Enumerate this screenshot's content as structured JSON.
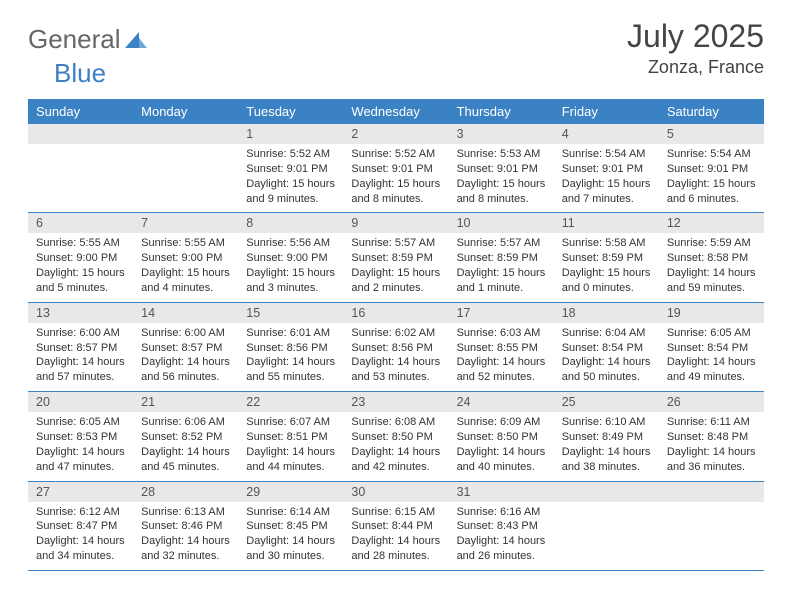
{
  "logo": {
    "text1": "General",
    "text2": "Blue"
  },
  "title": "July 2025",
  "location": "Zonza, France",
  "colors": {
    "header_bg": "#3b82c4",
    "header_text": "#ffffff",
    "daynum_bg": "#e8e8e8",
    "cell_border": "#3b82c4",
    "title_color": "#444444",
    "body_text": "#333333"
  },
  "day_headers": [
    "Sunday",
    "Monday",
    "Tuesday",
    "Wednesday",
    "Thursday",
    "Friday",
    "Saturday"
  ],
  "weeks": [
    [
      {
        "n": "",
        "lines": []
      },
      {
        "n": "",
        "lines": []
      },
      {
        "n": "1",
        "lines": [
          "Sunrise: 5:52 AM",
          "Sunset: 9:01 PM",
          "Daylight: 15 hours and 9 minutes."
        ]
      },
      {
        "n": "2",
        "lines": [
          "Sunrise: 5:52 AM",
          "Sunset: 9:01 PM",
          "Daylight: 15 hours and 8 minutes."
        ]
      },
      {
        "n": "3",
        "lines": [
          "Sunrise: 5:53 AM",
          "Sunset: 9:01 PM",
          "Daylight: 15 hours and 8 minutes."
        ]
      },
      {
        "n": "4",
        "lines": [
          "Sunrise: 5:54 AM",
          "Sunset: 9:01 PM",
          "Daylight: 15 hours and 7 minutes."
        ]
      },
      {
        "n": "5",
        "lines": [
          "Sunrise: 5:54 AM",
          "Sunset: 9:01 PM",
          "Daylight: 15 hours and 6 minutes."
        ]
      }
    ],
    [
      {
        "n": "6",
        "lines": [
          "Sunrise: 5:55 AM",
          "Sunset: 9:00 PM",
          "Daylight: 15 hours and 5 minutes."
        ]
      },
      {
        "n": "7",
        "lines": [
          "Sunrise: 5:55 AM",
          "Sunset: 9:00 PM",
          "Daylight: 15 hours and 4 minutes."
        ]
      },
      {
        "n": "8",
        "lines": [
          "Sunrise: 5:56 AM",
          "Sunset: 9:00 PM",
          "Daylight: 15 hours and 3 minutes."
        ]
      },
      {
        "n": "9",
        "lines": [
          "Sunrise: 5:57 AM",
          "Sunset: 8:59 PM",
          "Daylight: 15 hours and 2 minutes."
        ]
      },
      {
        "n": "10",
        "lines": [
          "Sunrise: 5:57 AM",
          "Sunset: 8:59 PM",
          "Daylight: 15 hours and 1 minute."
        ]
      },
      {
        "n": "11",
        "lines": [
          "Sunrise: 5:58 AM",
          "Sunset: 8:59 PM",
          "Daylight: 15 hours and 0 minutes."
        ]
      },
      {
        "n": "12",
        "lines": [
          "Sunrise: 5:59 AM",
          "Sunset: 8:58 PM",
          "Daylight: 14 hours and 59 minutes."
        ]
      }
    ],
    [
      {
        "n": "13",
        "lines": [
          "Sunrise: 6:00 AM",
          "Sunset: 8:57 PM",
          "Daylight: 14 hours and 57 minutes."
        ]
      },
      {
        "n": "14",
        "lines": [
          "Sunrise: 6:00 AM",
          "Sunset: 8:57 PM",
          "Daylight: 14 hours and 56 minutes."
        ]
      },
      {
        "n": "15",
        "lines": [
          "Sunrise: 6:01 AM",
          "Sunset: 8:56 PM",
          "Daylight: 14 hours and 55 minutes."
        ]
      },
      {
        "n": "16",
        "lines": [
          "Sunrise: 6:02 AM",
          "Sunset: 8:56 PM",
          "Daylight: 14 hours and 53 minutes."
        ]
      },
      {
        "n": "17",
        "lines": [
          "Sunrise: 6:03 AM",
          "Sunset: 8:55 PM",
          "Daylight: 14 hours and 52 minutes."
        ]
      },
      {
        "n": "18",
        "lines": [
          "Sunrise: 6:04 AM",
          "Sunset: 8:54 PM",
          "Daylight: 14 hours and 50 minutes."
        ]
      },
      {
        "n": "19",
        "lines": [
          "Sunrise: 6:05 AM",
          "Sunset: 8:54 PM",
          "Daylight: 14 hours and 49 minutes."
        ]
      }
    ],
    [
      {
        "n": "20",
        "lines": [
          "Sunrise: 6:05 AM",
          "Sunset: 8:53 PM",
          "Daylight: 14 hours and 47 minutes."
        ]
      },
      {
        "n": "21",
        "lines": [
          "Sunrise: 6:06 AM",
          "Sunset: 8:52 PM",
          "Daylight: 14 hours and 45 minutes."
        ]
      },
      {
        "n": "22",
        "lines": [
          "Sunrise: 6:07 AM",
          "Sunset: 8:51 PM",
          "Daylight: 14 hours and 44 minutes."
        ]
      },
      {
        "n": "23",
        "lines": [
          "Sunrise: 6:08 AM",
          "Sunset: 8:50 PM",
          "Daylight: 14 hours and 42 minutes."
        ]
      },
      {
        "n": "24",
        "lines": [
          "Sunrise: 6:09 AM",
          "Sunset: 8:50 PM",
          "Daylight: 14 hours and 40 minutes."
        ]
      },
      {
        "n": "25",
        "lines": [
          "Sunrise: 6:10 AM",
          "Sunset: 8:49 PM",
          "Daylight: 14 hours and 38 minutes."
        ]
      },
      {
        "n": "26",
        "lines": [
          "Sunrise: 6:11 AM",
          "Sunset: 8:48 PM",
          "Daylight: 14 hours and 36 minutes."
        ]
      }
    ],
    [
      {
        "n": "27",
        "lines": [
          "Sunrise: 6:12 AM",
          "Sunset: 8:47 PM",
          "Daylight: 14 hours and 34 minutes."
        ]
      },
      {
        "n": "28",
        "lines": [
          "Sunrise: 6:13 AM",
          "Sunset: 8:46 PM",
          "Daylight: 14 hours and 32 minutes."
        ]
      },
      {
        "n": "29",
        "lines": [
          "Sunrise: 6:14 AM",
          "Sunset: 8:45 PM",
          "Daylight: 14 hours and 30 minutes."
        ]
      },
      {
        "n": "30",
        "lines": [
          "Sunrise: 6:15 AM",
          "Sunset: 8:44 PM",
          "Daylight: 14 hours and 28 minutes."
        ]
      },
      {
        "n": "31",
        "lines": [
          "Sunrise: 6:16 AM",
          "Sunset: 8:43 PM",
          "Daylight: 14 hours and 26 minutes."
        ]
      },
      {
        "n": "",
        "lines": []
      },
      {
        "n": "",
        "lines": []
      }
    ]
  ]
}
